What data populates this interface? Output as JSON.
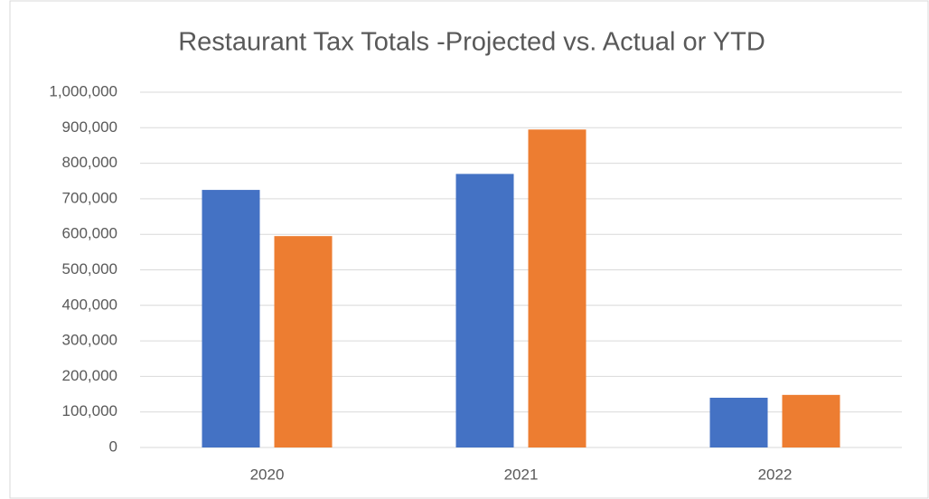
{
  "chart_data": {
    "type": "bar",
    "title": "Restaurant Tax Totals -Projected vs. Actual or YTD",
    "categories": [
      "2020",
      "2021",
      "2022"
    ],
    "series": [
      {
        "color": "#4472c4",
        "values": [
          725000,
          770000,
          140000
        ]
      },
      {
        "color": "#ed7d31",
        "values": [
          595000,
          895000,
          148000
        ]
      }
    ],
    "ylim": [
      0,
      1000000
    ],
    "yticks": [
      0,
      {
        "value": 100000,
        "label": "100,000"
      },
      {
        "value": 200000,
        "label": "200,000"
      },
      {
        "value": 300000,
        "label": "300,000"
      },
      {
        "value": 400000,
        "label": "400,000"
      },
      {
        "value": 500000,
        "label": "500,000"
      },
      {
        "value": 600000,
        "label": "600,000"
      },
      {
        "value": 700000,
        "label": "700,000"
      },
      {
        "value": 800000,
        "label": "800,000"
      },
      {
        "value": 900000,
        "label": "900,000"
      },
      {
        "value": 1000000,
        "label": "1,000,000"
      }
    ],
    "grid": true
  }
}
